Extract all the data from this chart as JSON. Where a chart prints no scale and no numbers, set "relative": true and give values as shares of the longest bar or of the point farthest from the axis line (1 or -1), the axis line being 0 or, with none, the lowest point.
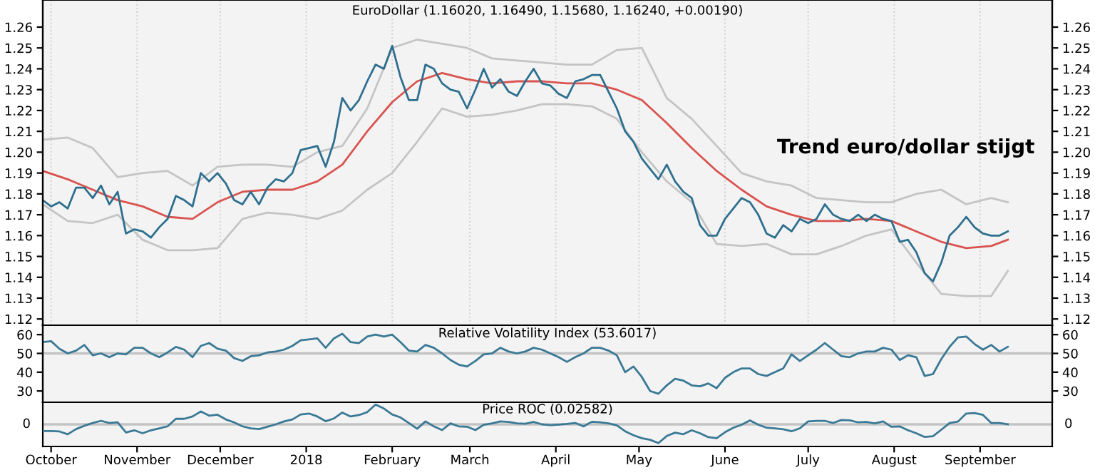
{
  "chart_data": [
    {
      "type": "line",
      "title": "EuroDollar (1.16020, 1.16490, 1.15680, 1.16240, +0.00190)",
      "annotations": [
        "Trend euro/dollar stijgt"
      ],
      "x": [
        "2017-09-28",
        "2017-10-01",
        "2017-10-04",
        "2017-10-07",
        "2017-10-10",
        "2017-10-13",
        "2017-10-16",
        "2017-10-19",
        "2017-10-22",
        "2017-10-25",
        "2017-10-28",
        "2017-10-31",
        "2017-11-03",
        "2017-11-06",
        "2017-11-09",
        "2017-11-12",
        "2017-11-15",
        "2017-11-18",
        "2017-11-21",
        "2017-11-24",
        "2017-11-27",
        "2017-11-30",
        "2017-12-03",
        "2017-12-06",
        "2017-12-09",
        "2017-12-12",
        "2017-12-15",
        "2017-12-18",
        "2017-12-21",
        "2017-12-24",
        "2017-12-27",
        "2017-12-30",
        "2018-01-02",
        "2018-01-05",
        "2018-01-08",
        "2018-01-11",
        "2018-01-14",
        "2018-01-17",
        "2018-01-20",
        "2018-01-23",
        "2018-01-26",
        "2018-01-29",
        "2018-02-01",
        "2018-02-04",
        "2018-02-07",
        "2018-02-10",
        "2018-02-13",
        "2018-02-16",
        "2018-02-19",
        "2018-02-22",
        "2018-02-25",
        "2018-02-28",
        "2018-03-03",
        "2018-03-06",
        "2018-03-09",
        "2018-03-12",
        "2018-03-15",
        "2018-03-18",
        "2018-03-21",
        "2018-03-24",
        "2018-03-27",
        "2018-03-30",
        "2018-04-02",
        "2018-04-05",
        "2018-04-08",
        "2018-04-11",
        "2018-04-14",
        "2018-04-17",
        "2018-04-20",
        "2018-04-23",
        "2018-04-26",
        "2018-04-29",
        "2018-05-02",
        "2018-05-05",
        "2018-05-08",
        "2018-05-11",
        "2018-05-14",
        "2018-05-17",
        "2018-05-20",
        "2018-05-23",
        "2018-05-26",
        "2018-05-29",
        "2018-06-01",
        "2018-06-04",
        "2018-06-07",
        "2018-06-10",
        "2018-06-13",
        "2018-06-16",
        "2018-06-19",
        "2018-06-22",
        "2018-06-25",
        "2018-06-28",
        "2018-07-01",
        "2018-07-04",
        "2018-07-07",
        "2018-07-10",
        "2018-07-13",
        "2018-07-16",
        "2018-07-19",
        "2018-07-22",
        "2018-07-25",
        "2018-07-28",
        "2018-07-31",
        "2018-08-03",
        "2018-08-06",
        "2018-08-09",
        "2018-08-12",
        "2018-08-15",
        "2018-08-18",
        "2018-08-21",
        "2018-08-24",
        "2018-08-27",
        "2018-08-30",
        "2018-09-02",
        "2018-09-05",
        "2018-09-08",
        "2018-09-11"
      ],
      "series": [
        {
          "color": "#c4c4c4",
          "x": [
            "2017-09-28",
            "2017-10-07",
            "2017-10-16",
            "2017-10-25",
            "2017-11-03",
            "2017-11-12",
            "2017-11-21",
            "2017-11-30",
            "2017-12-09",
            "2017-12-18",
            "2017-12-27",
            "2018-01-05",
            "2018-01-14",
            "2018-01-23",
            "2018-02-01",
            "2018-02-10",
            "2018-02-19",
            "2018-02-28",
            "2018-03-09",
            "2018-03-18",
            "2018-03-27",
            "2018-04-05",
            "2018-04-14",
            "2018-04-23",
            "2018-05-02",
            "2018-05-11",
            "2018-05-20",
            "2018-05-29",
            "2018-06-07",
            "2018-06-16",
            "2018-06-25",
            "2018-07-04",
            "2018-07-13",
            "2018-07-22",
            "2018-07-31",
            "2018-08-09",
            "2018-08-18",
            "2018-08-27",
            "2018-09-05",
            "2018-09-11"
          ],
          "values": [
            1.206,
            1.207,
            1.202,
            1.188,
            1.19,
            1.191,
            1.184,
            1.193,
            1.194,
            1.194,
            1.193,
            1.2,
            1.203,
            1.221,
            1.25,
            1.254,
            1.252,
            1.25,
            1.245,
            1.244,
            1.243,
            1.242,
            1.242,
            1.249,
            1.25,
            1.226,
            1.216,
            1.203,
            1.19,
            1.186,
            1.184,
            1.178,
            1.177,
            1.176,
            1.176,
            1.18,
            1.182,
            1.175,
            1.178,
            1.176
          ]
        },
        {
          "color": "#c4c4c4",
          "x": [
            "2017-09-28",
            "2017-10-07",
            "2017-10-16",
            "2017-10-25",
            "2017-11-03",
            "2017-11-12",
            "2017-11-21",
            "2017-11-30",
            "2017-12-09",
            "2017-12-18",
            "2017-12-27",
            "2018-01-05",
            "2018-01-14",
            "2018-01-23",
            "2018-02-01",
            "2018-02-10",
            "2018-02-19",
            "2018-02-28",
            "2018-03-09",
            "2018-03-18",
            "2018-03-27",
            "2018-04-05",
            "2018-04-14",
            "2018-04-23",
            "2018-05-02",
            "2018-05-11",
            "2018-05-20",
            "2018-05-29",
            "2018-06-07",
            "2018-06-16",
            "2018-06-25",
            "2018-07-04",
            "2018-07-13",
            "2018-07-22",
            "2018-07-31",
            "2018-08-09",
            "2018-08-18",
            "2018-08-27",
            "2018-09-05",
            "2018-09-11"
          ],
          "values": [
            1.175,
            1.167,
            1.166,
            1.17,
            1.158,
            1.153,
            1.153,
            1.154,
            1.168,
            1.171,
            1.17,
            1.168,
            1.172,
            1.182,
            1.19,
            1.205,
            1.221,
            1.217,
            1.218,
            1.22,
            1.223,
            1.223,
            1.222,
            1.216,
            1.2,
            1.186,
            1.176,
            1.156,
            1.155,
            1.156,
            1.151,
            1.151,
            1.155,
            1.16,
            1.163,
            1.147,
            1.132,
            1.131,
            1.131,
            1.143
          ]
        },
        {
          "color": "#d9534f",
          "x": [
            "2017-09-28",
            "2017-10-07",
            "2017-10-16",
            "2017-10-25",
            "2017-11-03",
            "2017-11-12",
            "2017-11-21",
            "2017-11-30",
            "2017-12-09",
            "2017-12-18",
            "2017-12-27",
            "2018-01-05",
            "2018-01-14",
            "2018-01-23",
            "2018-02-01",
            "2018-02-10",
            "2018-02-19",
            "2018-02-28",
            "2018-03-09",
            "2018-03-18",
            "2018-03-27",
            "2018-04-05",
            "2018-04-14",
            "2018-04-23",
            "2018-05-02",
            "2018-05-11",
            "2018-05-20",
            "2018-05-29",
            "2018-06-07",
            "2018-06-16",
            "2018-06-25",
            "2018-07-04",
            "2018-07-13",
            "2018-07-22",
            "2018-07-31",
            "2018-08-09",
            "2018-08-18",
            "2018-08-27",
            "2018-09-05",
            "2018-09-11"
          ],
          "values": [
            1.191,
            1.187,
            1.182,
            1.177,
            1.174,
            1.169,
            1.168,
            1.176,
            1.181,
            1.182,
            1.182,
            1.186,
            1.194,
            1.21,
            1.224,
            1.234,
            1.238,
            1.235,
            1.233,
            1.234,
            1.234,
            1.233,
            1.233,
            1.23,
            1.225,
            1.214,
            1.202,
            1.191,
            1.182,
            1.174,
            1.17,
            1.167,
            1.167,
            1.168,
            1.167,
            1.162,
            1.157,
            1.154,
            1.155,
            1.158
          ]
        },
        {
          "color": "#2d6f8e",
          "values": [
            1.177,
            1.174,
            1.176,
            1.173,
            1.183,
            1.183,
            1.178,
            1.184,
            1.175,
            1.181,
            1.161,
            1.163,
            1.162,
            1.159,
            1.164,
            1.168,
            1.179,
            1.177,
            1.174,
            1.19,
            1.186,
            1.19,
            1.185,
            1.177,
            1.175,
            1.181,
            1.175,
            1.183,
            1.187,
            1.186,
            1.19,
            1.201,
            1.202,
            1.203,
            1.193,
            1.205,
            1.226,
            1.22,
            1.225,
            1.234,
            1.242,
            1.24,
            1.251,
            1.236,
            1.225,
            1.225,
            1.242,
            1.24,
            1.233,
            1.23,
            1.229,
            1.221,
            1.23,
            1.24,
            1.231,
            1.235,
            1.229,
            1.227,
            1.234,
            1.24,
            1.233,
            1.232,
            1.228,
            1.226,
            1.234,
            1.235,
            1.237,
            1.237,
            1.229,
            1.221,
            1.21,
            1.205,
            1.197,
            1.192,
            1.187,
            1.194,
            1.186,
            1.181,
            1.178,
            1.165,
            1.16,
            1.16,
            1.168,
            1.173,
            1.178,
            1.176,
            1.17,
            1.161,
            1.159,
            1.165,
            1.162,
            1.168,
            1.166,
            1.168,
            1.175,
            1.17,
            1.168,
            1.167,
            1.17,
            1.167,
            1.17,
            1.168,
            1.167,
            1.157,
            1.158,
            1.152,
            1.142,
            1.138,
            1.147,
            1.16,
            1.164,
            1.169,
            1.164,
            1.161,
            1.16,
            1.16,
            1.162
          ]
        }
      ],
      "xlim": [
        "2017-09-28",
        "2018-09-27"
      ],
      "ylim": [
        1.117,
        1.273
      ],
      "yticks": [
        1.12,
        1.13,
        1.14,
        1.15,
        1.16,
        1.17,
        1.18,
        1.19,
        {
          "value": 1.2,
          "label": "1.20"
        },
        1.21,
        1.22,
        1.23,
        1.24,
        1.25,
        1.26
      ],
      "y2lim": [
        1.117,
        1.273
      ],
      "y2ticks": [
        1.12,
        1.13,
        1.14,
        1.15,
        1.16,
        1.17,
        1.18,
        1.19,
        {
          "value": 1.2,
          "label": "1.20"
        },
        1.21,
        1.22,
        1.23,
        1.24,
        1.25,
        1.26
      ],
      "grid": "x",
      "tick_labels": "y",
      "line_style": "solid"
    },
    {
      "type": "line",
      "title": "Relative Volatility Index (53.6017)",
      "x": [
        "2017-09-28",
        "2017-10-01",
        "2017-10-04",
        "2017-10-07",
        "2017-10-10",
        "2017-10-13",
        "2017-10-16",
        "2017-10-19",
        "2017-10-22",
        "2017-10-25",
        "2017-10-28",
        "2017-10-31",
        "2017-11-03",
        "2017-11-06",
        "2017-11-09",
        "2017-11-12",
        "2017-11-15",
        "2017-11-18",
        "2017-11-21",
        "2017-11-24",
        "2017-11-27",
        "2017-11-30",
        "2017-12-03",
        "2017-12-06",
        "2017-12-09",
        "2017-12-12",
        "2017-12-15",
        "2017-12-18",
        "2017-12-21",
        "2017-12-24",
        "2017-12-27",
        "2017-12-30",
        "2018-01-02",
        "2018-01-05",
        "2018-01-08",
        "2018-01-11",
        "2018-01-14",
        "2018-01-17",
        "2018-01-20",
        "2018-01-23",
        "2018-01-26",
        "2018-01-29",
        "2018-02-01",
        "2018-02-04",
        "2018-02-07",
        "2018-02-10",
        "2018-02-13",
        "2018-02-16",
        "2018-02-19",
        "2018-02-22",
        "2018-02-25",
        "2018-02-28",
        "2018-03-03",
        "2018-03-06",
        "2018-03-09",
        "2018-03-12",
        "2018-03-15",
        "2018-03-18",
        "2018-03-21",
        "2018-03-24",
        "2018-03-27",
        "2018-03-30",
        "2018-04-02",
        "2018-04-05",
        "2018-04-08",
        "2018-04-11",
        "2018-04-14",
        "2018-04-17",
        "2018-04-20",
        "2018-04-23",
        "2018-04-26",
        "2018-04-29",
        "2018-05-02",
        "2018-05-05",
        "2018-05-08",
        "2018-05-11",
        "2018-05-14",
        "2018-05-17",
        "2018-05-20",
        "2018-05-23",
        "2018-05-26",
        "2018-05-29",
        "2018-06-01",
        "2018-06-04",
        "2018-06-07",
        "2018-06-10",
        "2018-06-13",
        "2018-06-16",
        "2018-06-19",
        "2018-06-22",
        "2018-06-25",
        "2018-06-28",
        "2018-07-01",
        "2018-07-04",
        "2018-07-07",
        "2018-07-10",
        "2018-07-13",
        "2018-07-16",
        "2018-07-19",
        "2018-07-22",
        "2018-07-25",
        "2018-07-28",
        "2018-07-31",
        "2018-08-03",
        "2018-08-06",
        "2018-08-09",
        "2018-08-12",
        "2018-08-15",
        "2018-08-18",
        "2018-08-21",
        "2018-08-24",
        "2018-08-27",
        "2018-08-30",
        "2018-09-02",
        "2018-09-05",
        "2018-09-08",
        "2018-09-11"
      ],
      "series": [
        {
          "color": "#3a7995",
          "values": [
            56,
            56.5,
            52.5,
            50,
            51.5,
            54.5,
            49,
            50,
            48,
            50,
            49.5,
            53,
            53,
            50,
            48,
            50.5,
            53.5,
            52,
            48,
            54,
            55.5,
            52.5,
            51.5,
            47.5,
            46,
            48.5,
            49,
            50.5,
            51,
            52,
            54,
            57,
            57.5,
            58,
            53,
            58,
            60.5,
            56,
            55.5,
            59,
            60,
            59,
            60,
            56,
            51.5,
            51,
            54.5,
            53,
            50,
            46.5,
            44,
            43,
            46,
            49.5,
            50,
            53,
            51,
            50,
            51,
            53,
            52,
            50,
            48,
            45.5,
            48,
            50,
            53,
            53,
            51.5,
            49,
            40,
            43,
            37.5,
            30,
            28.5,
            33,
            36.5,
            35.5,
            33,
            32.5,
            34,
            31.5,
            37,
            40,
            42,
            42,
            39,
            38,
            40,
            42,
            49.5,
            46,
            49,
            52,
            55.5,
            52,
            48.5,
            48,
            50,
            51,
            51,
            53,
            52,
            46.5,
            49,
            48,
            38,
            39,
            47,
            53.5,
            58.5,
            59,
            55,
            52,
            54.5,
            51,
            53.5
          ]
        }
      ],
      "ref_lines": [
        {
          "axis": "y",
          "value": 50,
          "color": "#c4c4c4"
        }
      ],
      "xlim": [
        "2017-09-28",
        "2018-09-27"
      ],
      "ylim": [
        24,
        65
      ],
      "yticks": [
        30,
        40,
        50,
        60
      ],
      "y2lim": [
        24,
        65
      ],
      "y2ticks": [
        30,
        40,
        50,
        60
      ],
      "tick_labels": "y",
      "line_style": "solid"
    },
    {
      "type": "line",
      "title": "Price ROC (0.02582)",
      "relative": true,
      "x": [
        "2017-09-28",
        "2017-10-01",
        "2017-10-04",
        "2017-10-07",
        "2017-10-10",
        "2017-10-13",
        "2017-10-16",
        "2017-10-19",
        "2017-10-22",
        "2017-10-25",
        "2017-10-28",
        "2017-10-31",
        "2017-11-03",
        "2017-11-06",
        "2017-11-09",
        "2017-11-12",
        "2017-11-15",
        "2017-11-18",
        "2017-11-21",
        "2017-11-24",
        "2017-11-27",
        "2017-11-30",
        "2017-12-03",
        "2017-12-06",
        "2017-12-09",
        "2017-12-12",
        "2017-12-15",
        "2017-12-18",
        "2017-12-21",
        "2017-12-24",
        "2017-12-27",
        "2017-12-30",
        "2018-01-02",
        "2018-01-05",
        "2018-01-08",
        "2018-01-11",
        "2018-01-14",
        "2018-01-17",
        "2018-01-20",
        "2018-01-23",
        "2018-01-26",
        "2018-01-29",
        "2018-02-01",
        "2018-02-04",
        "2018-02-07",
        "2018-02-10",
        "2018-02-13",
        "2018-02-16",
        "2018-02-19",
        "2018-02-22",
        "2018-02-25",
        "2018-02-28",
        "2018-03-03",
        "2018-03-06",
        "2018-03-09",
        "2018-03-12",
        "2018-03-15",
        "2018-03-18",
        "2018-03-21",
        "2018-03-24",
        "2018-03-27",
        "2018-03-30",
        "2018-04-02",
        "2018-04-05",
        "2018-04-08",
        "2018-04-11",
        "2018-04-14",
        "2018-04-17",
        "2018-04-20",
        "2018-04-23",
        "2018-04-26",
        "2018-04-29",
        "2018-05-02",
        "2018-05-05",
        "2018-05-08",
        "2018-05-11",
        "2018-05-14",
        "2018-05-17",
        "2018-05-20",
        "2018-05-23",
        "2018-05-26",
        "2018-05-29",
        "2018-06-01",
        "2018-06-04",
        "2018-06-07",
        "2018-06-10",
        "2018-06-13",
        "2018-06-16",
        "2018-06-19",
        "2018-06-22",
        "2018-06-25",
        "2018-06-28",
        "2018-07-01",
        "2018-07-04",
        "2018-07-07",
        "2018-07-10",
        "2018-07-13",
        "2018-07-16",
        "2018-07-19",
        "2018-07-22",
        "2018-07-25",
        "2018-07-28",
        "2018-07-31",
        "2018-08-03",
        "2018-08-06",
        "2018-08-09",
        "2018-08-12",
        "2018-08-15",
        "2018-08-18",
        "2018-08-21",
        "2018-08-24",
        "2018-08-27",
        "2018-08-30",
        "2018-09-02",
        "2018-09-05",
        "2018-09-08",
        "2018-09-11"
      ],
      "series": [
        {
          "color": "#3a7995",
          "values": [
            -0.34,
            -0.34,
            -0.36,
            -0.5,
            -0.24,
            -0.07,
            0.07,
            0.18,
            0.07,
            0.1,
            -0.41,
            -0.3,
            -0.45,
            -0.3,
            -0.2,
            -0.1,
            0.28,
            0.28,
            0.4,
            0.65,
            0.44,
            0.49,
            0.25,
            0.1,
            -0.1,
            -0.2,
            -0.24,
            -0.12,
            0,
            0.15,
            0.25,
            0.5,
            0.55,
            0.4,
            0.16,
            0.3,
            0.6,
            0.4,
            0.47,
            0.62,
            1,
            0.8,
            0.5,
            0.35,
            0.07,
            -0.22,
            0.15,
            -0.1,
            -0.29,
            0.05,
            -0.1,
            -0.12,
            -0.29,
            -0.02,
            0.05,
            0.15,
            0.12,
            0.05,
            0.03,
            0.12,
            0,
            -0.04,
            -0.01,
            0.02,
            0.07,
            -0.1,
            0.13,
            0.1,
            0.05,
            -0.05,
            -0.35,
            -0.55,
            -0.7,
            -0.78,
            -0.95,
            -0.59,
            -0.42,
            -0.5,
            -0.3,
            -0.45,
            -0.65,
            -0.7,
            -0.4,
            -0.17,
            -0.02,
            0.2,
            -0.02,
            -0.17,
            -0.2,
            -0.25,
            -0.35,
            -0.2,
            0.15,
            0.18,
            0.18,
            0.07,
            0.22,
            0.2,
            0.1,
            0.12,
            0.05,
            0.15,
            -0.12,
            -0.1,
            -0.3,
            -0.45,
            -0.64,
            -0.6,
            -0.27,
            0.07,
            0.14,
            0.55,
            0.57,
            0.48,
            0.07,
            0.07,
            0
          ]
        }
      ],
      "ref_lines": [
        {
          "axis": "y",
          "value": 0,
          "label": "0",
          "color": "#c4c4c4"
        }
      ],
      "xlim": [
        "2017-09-28",
        "2018-09-27"
      ],
      "xticks": [
        {
          "value": "2017-10-01",
          "label": "October"
        },
        {
          "value": "2017-11-01",
          "label": "November"
        },
        {
          "value": "2017-12-01",
          "label": "December"
        },
        {
          "value": "2018-01-01",
          "label": "2018"
        },
        {
          "value": "2018-02-01",
          "label": "February"
        },
        {
          "value": "2018-03-01",
          "label": "March"
        },
        {
          "value": "2018-04-01",
          "label": "April"
        },
        {
          "value": "2018-05-01",
          "label": "May"
        },
        {
          "value": "2018-06-01",
          "label": "June"
        },
        {
          "value": "2018-07-01",
          "label": "July"
        },
        {
          "value": "2018-08-01",
          "label": "August"
        },
        {
          "value": "2018-09-01",
          "label": "September"
        }
      ],
      "tick_labels": "x",
      "line_style": "solid"
    }
  ]
}
